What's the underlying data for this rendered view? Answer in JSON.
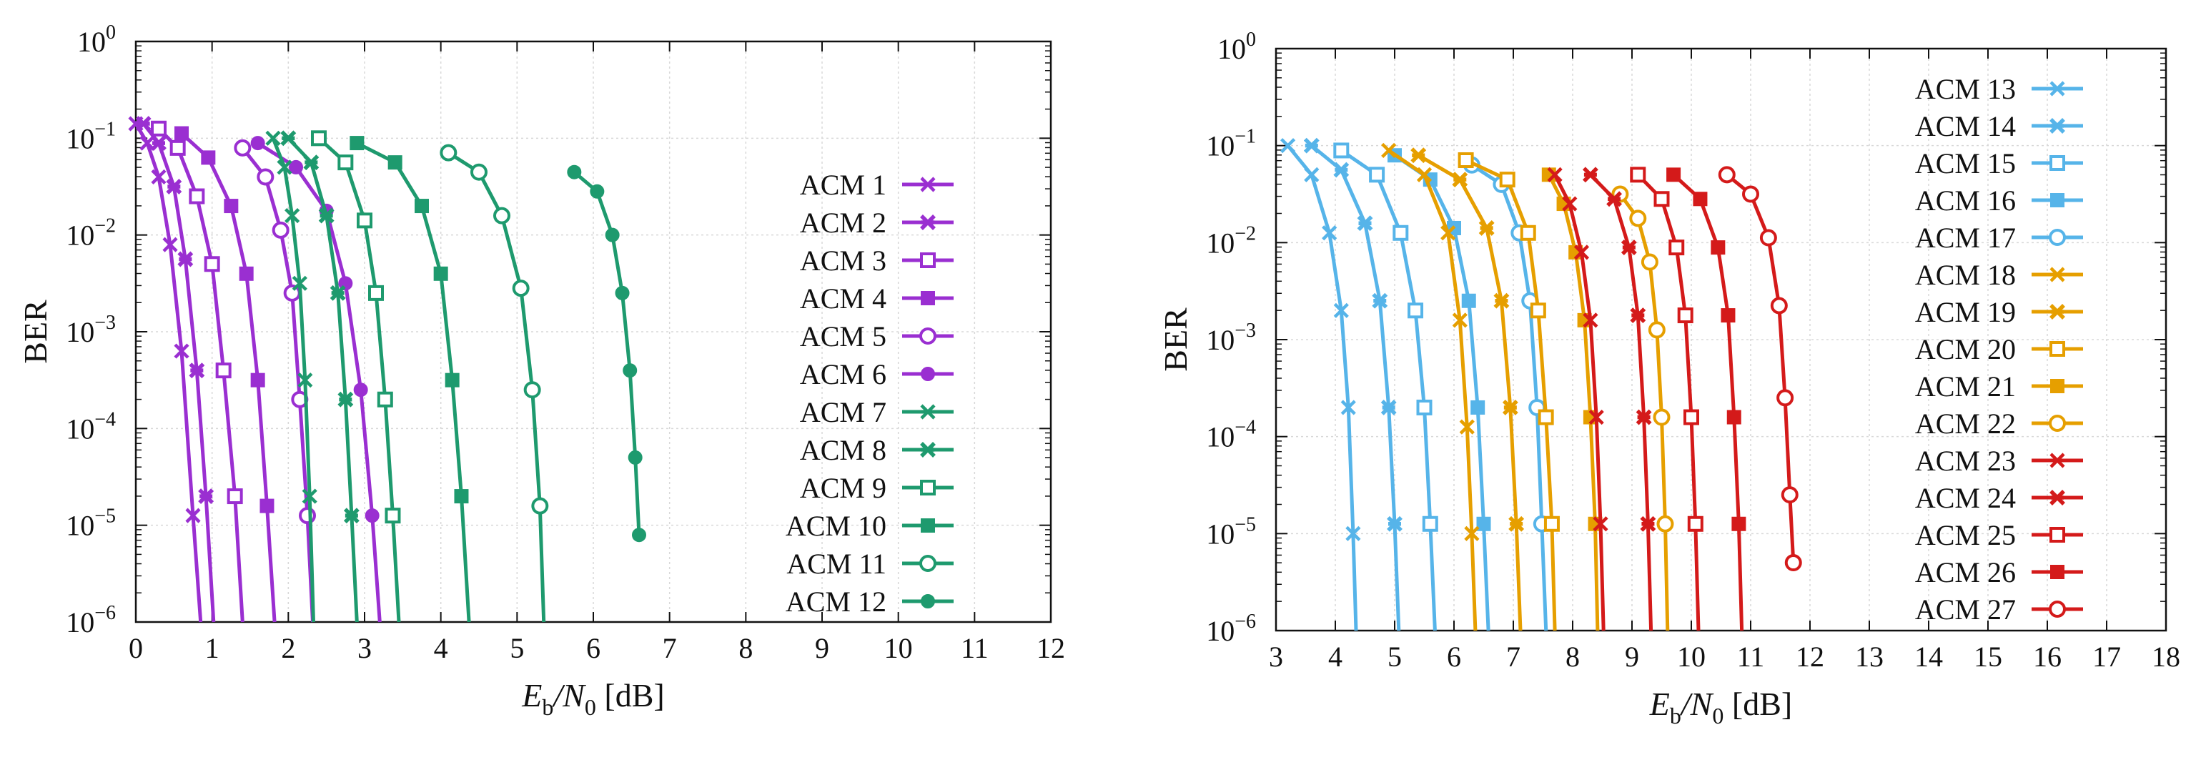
{
  "chart_data": [
    {
      "type": "line",
      "xlabel": "Eb/N0 [dB]",
      "xlabel_parts": {
        "main": "E",
        "sub": "b",
        "sep": "/N",
        "sub2": "0",
        "unit": " [dB]"
      },
      "ylabel": "BER",
      "xlim": [
        0,
        12
      ],
      "ylim_exp": [
        -6,
        0
      ],
      "xticks": [
        "0",
        "1",
        "2",
        "3",
        "4",
        "5",
        "6",
        "7",
        "8",
        "9",
        "10",
        "11",
        "12"
      ],
      "yticks": [
        {
          "base": "10",
          "exp": "0"
        },
        {
          "base": "10",
          "exp": "−1"
        },
        {
          "base": "10",
          "exp": "−2"
        },
        {
          "base": "10",
          "exp": "−3"
        },
        {
          "base": "10",
          "exp": "−4"
        },
        {
          "base": "10",
          "exp": "−5"
        },
        {
          "base": "10",
          "exp": "−6"
        }
      ],
      "grid": true,
      "legend_position": "right",
      "series": [
        {
          "name": "ACM 1",
          "color": "#9a2fd1",
          "marker": "x",
          "x": [
            0,
            0.15,
            0.3,
            0.45,
            0.6,
            0.75,
            0.85
          ],
          "y_exp": [
            -0.85,
            -1.05,
            -1.4,
            -2.1,
            -3.2,
            -4.9,
            -6
          ]
        },
        {
          "name": "ACM 2",
          "color": "#9a2fd1",
          "marker": "xs",
          "x": [
            0.1,
            0.3,
            0.5,
            0.65,
            0.8,
            0.92,
            1.02
          ],
          "y_exp": [
            -0.85,
            -1.05,
            -1.5,
            -2.25,
            -3.4,
            -4.7,
            -6
          ]
        },
        {
          "name": "ACM 3",
          "color": "#9a2fd1",
          "marker": "sq",
          "x": [
            0.3,
            0.55,
            0.8,
            1.0,
            1.15,
            1.3,
            1.4
          ],
          "y_exp": [
            -0.9,
            -1.1,
            -1.6,
            -2.3,
            -3.4,
            -4.7,
            -6
          ]
        },
        {
          "name": "ACM 4",
          "color": "#9a2fd1",
          "marker": "fsq",
          "x": [
            0.6,
            0.95,
            1.25,
            1.45,
            1.6,
            1.72,
            1.82
          ],
          "y_exp": [
            -0.95,
            -1.2,
            -1.7,
            -2.4,
            -3.5,
            -4.8,
            -6
          ]
        },
        {
          "name": "ACM 5",
          "color": "#9a2fd1",
          "marker": "circ",
          "x": [
            1.4,
            1.7,
            1.9,
            2.05,
            2.15,
            2.25,
            2.32
          ],
          "y_exp": [
            -1.1,
            -1.4,
            -1.95,
            -2.6,
            -3.7,
            -4.9,
            -6
          ]
        },
        {
          "name": "ACM 6",
          "color": "#9a2fd1",
          "marker": "fcirc",
          "x": [
            1.6,
            2.1,
            2.5,
            2.75,
            2.95,
            3.1,
            3.2
          ],
          "y_exp": [
            -1.05,
            -1.3,
            -1.75,
            -2.5,
            -3.6,
            -4.9,
            -6
          ]
        },
        {
          "name": "ACM 7",
          "color": "#1e9a6e",
          "marker": "x",
          "x": [
            1.8,
            1.95,
            2.05,
            2.15,
            2.22,
            2.28,
            2.33
          ],
          "y_exp": [
            -1.0,
            -1.3,
            -1.8,
            -2.5,
            -3.5,
            -4.7,
            -6
          ]
        },
        {
          "name": "ACM 8",
          "color": "#1e9a6e",
          "marker": "xs",
          "x": [
            2.0,
            2.3,
            2.5,
            2.65,
            2.75,
            2.83,
            2.9
          ],
          "y_exp": [
            -1.0,
            -1.25,
            -1.8,
            -2.6,
            -3.7,
            -4.9,
            -6
          ]
        },
        {
          "name": "ACM 9",
          "color": "#1e9a6e",
          "marker": "sq",
          "x": [
            2.4,
            2.75,
            3.0,
            3.15,
            3.27,
            3.37,
            3.45
          ],
          "y_exp": [
            -1.0,
            -1.25,
            -1.85,
            -2.6,
            -3.7,
            -4.9,
            -6
          ]
        },
        {
          "name": "ACM 10",
          "color": "#1e9a6e",
          "marker": "fsq",
          "x": [
            2.9,
            3.4,
            3.75,
            4.0,
            4.15,
            4.27,
            4.37
          ],
          "y_exp": [
            -1.05,
            -1.25,
            -1.7,
            -2.4,
            -3.5,
            -4.7,
            -6
          ]
        },
        {
          "name": "ACM 11",
          "color": "#1e9a6e",
          "marker": "circ",
          "x": [
            4.1,
            4.5,
            4.8,
            5.05,
            5.2,
            5.3,
            5.35
          ],
          "y_exp": [
            -1.15,
            -1.35,
            -1.8,
            -2.55,
            -3.6,
            -4.8,
            -6
          ]
        },
        {
          "name": "ACM 12",
          "color": "#1e9a6e",
          "marker": "fcirc",
          "x": [
            5.75,
            6.05,
            6.25,
            6.38,
            6.48,
            6.55,
            6.6
          ],
          "y_exp": [
            -1.35,
            -1.55,
            -2.0,
            -2.6,
            -3.4,
            -4.3,
            -5.1
          ]
        }
      ]
    },
    {
      "type": "line",
      "xlabel": "Eb/N0 [dB]",
      "xlabel_parts": {
        "main": "E",
        "sub": "b",
        "sep": "/N",
        "sub2": "0",
        "unit": " [dB]"
      },
      "ylabel": "BER",
      "xlim": [
        3,
        18
      ],
      "ylim_exp": [
        -6,
        0
      ],
      "xticks": [
        "3",
        "4",
        "5",
        "6",
        "7",
        "8",
        "9",
        "10",
        "11",
        "12",
        "13",
        "14",
        "15",
        "16",
        "17",
        "18"
      ],
      "yticks": [
        {
          "base": "10",
          "exp": "0"
        },
        {
          "base": "10",
          "exp": "−1"
        },
        {
          "base": "10",
          "exp": "−2"
        },
        {
          "base": "10",
          "exp": "−3"
        },
        {
          "base": "10",
          "exp": "−4"
        },
        {
          "base": "10",
          "exp": "−5"
        },
        {
          "base": "10",
          "exp": "−6"
        }
      ],
      "grid": true,
      "legend_position": "right",
      "series": [
        {
          "name": "ACM 13",
          "color": "#56b4e9",
          "marker": "x",
          "x": [
            3.2,
            3.6,
            3.9,
            4.1,
            4.22,
            4.3,
            4.35
          ],
          "y_exp": [
            -1.0,
            -1.3,
            -1.9,
            -2.7,
            -3.7,
            -5.0,
            -6
          ]
        },
        {
          "name": "ACM 14",
          "color": "#56b4e9",
          "marker": "xs",
          "x": [
            3.6,
            4.1,
            4.5,
            4.75,
            4.9,
            5.0,
            5.07
          ],
          "y_exp": [
            -1.0,
            -1.25,
            -1.8,
            -2.6,
            -3.7,
            -4.9,
            -6
          ]
        },
        {
          "name": "ACM 15",
          "color": "#56b4e9",
          "marker": "sq",
          "x": [
            4.1,
            4.7,
            5.1,
            5.35,
            5.5,
            5.6,
            5.68
          ],
          "y_exp": [
            -1.05,
            -1.3,
            -1.9,
            -2.7,
            -3.7,
            -4.9,
            -6
          ]
        },
        {
          "name": "ACM 16",
          "color": "#56b4e9",
          "marker": "fsq",
          "x": [
            5.0,
            5.6,
            6.0,
            6.25,
            6.4,
            6.5,
            6.58
          ],
          "y_exp": [
            -1.1,
            -1.35,
            -1.85,
            -2.6,
            -3.7,
            -4.9,
            -6
          ]
        },
        {
          "name": "ACM 17",
          "color": "#56b4e9",
          "marker": "circ",
          "x": [
            6.3,
            6.8,
            7.1,
            7.28,
            7.4,
            7.48,
            7.55
          ],
          "y_exp": [
            -1.2,
            -1.4,
            -1.9,
            -2.6,
            -3.7,
            -4.9,
            -6
          ]
        },
        {
          "name": "ACM 18",
          "color": "#e69f00",
          "marker": "x",
          "x": [
            4.9,
            5.5,
            5.9,
            6.1,
            6.22,
            6.3,
            6.36
          ],
          "y_exp": [
            -1.05,
            -1.3,
            -1.9,
            -2.8,
            -3.9,
            -5.0,
            -6
          ]
        },
        {
          "name": "ACM 19",
          "color": "#e69f00",
          "marker": "xs",
          "x": [
            5.4,
            6.1,
            6.55,
            6.8,
            6.95,
            7.05,
            7.12
          ],
          "y_exp": [
            -1.1,
            -1.35,
            -1.85,
            -2.6,
            -3.7,
            -4.9,
            -6
          ]
        },
        {
          "name": "ACM 20",
          "color": "#e69f00",
          "marker": "sq",
          "x": [
            6.2,
            6.9,
            7.25,
            7.42,
            7.55,
            7.65,
            7.7
          ],
          "y_exp": [
            -1.15,
            -1.35,
            -1.9,
            -2.7,
            -3.8,
            -4.9,
            -6
          ]
        },
        {
          "name": "ACM 21",
          "color": "#e69f00",
          "marker": "fsq",
          "x": [
            7.6,
            7.85,
            8.05,
            8.2,
            8.3,
            8.38,
            8.42
          ],
          "y_exp": [
            -1.3,
            -1.6,
            -2.1,
            -2.8,
            -3.8,
            -4.9,
            -6
          ]
        },
        {
          "name": "ACM 22",
          "color": "#e69f00",
          "marker": "circ",
          "x": [
            8.8,
            9.1,
            9.3,
            9.42,
            9.5,
            9.56,
            9.6
          ],
          "y_exp": [
            -1.5,
            -1.75,
            -2.2,
            -2.9,
            -3.8,
            -4.9,
            -6
          ]
        },
        {
          "name": "ACM 23",
          "color": "#d41a1a",
          "marker": "x",
          "x": [
            7.7,
            7.95,
            8.15,
            8.3,
            8.4,
            8.47,
            8.52
          ],
          "y_exp": [
            -1.3,
            -1.6,
            -2.1,
            -2.8,
            -3.8,
            -4.9,
            -6
          ]
        },
        {
          "name": "ACM 24",
          "color": "#d41a1a",
          "marker": "xs",
          "x": [
            8.3,
            8.7,
            8.95,
            9.1,
            9.2,
            9.27,
            9.32
          ],
          "y_exp": [
            -1.3,
            -1.55,
            -2.05,
            -2.75,
            -3.8,
            -4.9,
            -6
          ]
        },
        {
          "name": "ACM 25",
          "color": "#d41a1a",
          "marker": "sq",
          "x": [
            9.1,
            9.5,
            9.75,
            9.9,
            10.0,
            10.07,
            10.12
          ],
          "y_exp": [
            -1.3,
            -1.55,
            -2.05,
            -2.75,
            -3.8,
            -4.9,
            -6
          ]
        },
        {
          "name": "ACM 26",
          "color": "#d41a1a",
          "marker": "fsq",
          "x": [
            9.7,
            10.15,
            10.45,
            10.62,
            10.72,
            10.8,
            10.85
          ],
          "y_exp": [
            -1.3,
            -1.55,
            -2.05,
            -2.75,
            -3.8,
            -4.9,
            -6
          ]
        },
        {
          "name": "ACM 27",
          "color": "#d41a1a",
          "marker": "circ",
          "x": [
            10.6,
            11.0,
            11.3,
            11.48,
            11.58,
            11.66,
            11.72
          ],
          "y_exp": [
            -1.3,
            -1.5,
            -1.95,
            -2.65,
            -3.6,
            -4.6,
            -5.3
          ]
        }
      ]
    }
  ]
}
